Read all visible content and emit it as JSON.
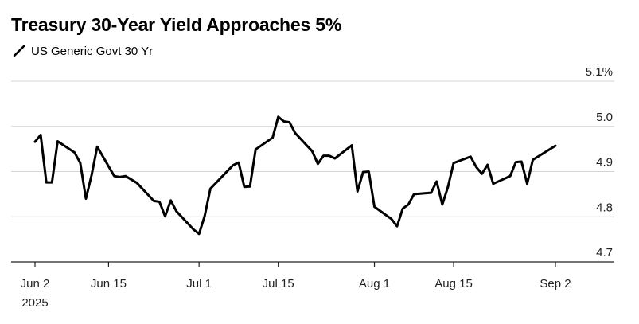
{
  "chart_data": {
    "type": "line",
    "title": "Treasury 30-Year Yield Approaches 5%",
    "legend_position": "top-left",
    "grid": true,
    "series": [
      {
        "name": "US Generic Govt 30 Yr",
        "color": "#000000",
        "points": [
          [
            "2025-06-02",
            4.966
          ],
          [
            "2025-06-03",
            4.981
          ],
          [
            "2025-06-04",
            4.876
          ],
          [
            "2025-06-05",
            4.876
          ],
          [
            "2025-06-06",
            4.967
          ],
          [
            "2025-06-09",
            4.942
          ],
          [
            "2025-06-10",
            4.919
          ],
          [
            "2025-06-11",
            4.84
          ],
          [
            "2025-06-12",
            4.892
          ],
          [
            "2025-06-13",
            4.955
          ],
          [
            "2025-06-16",
            4.89
          ],
          [
            "2025-06-17",
            4.888
          ],
          [
            "2025-06-18",
            4.89
          ],
          [
            "2025-06-20",
            4.875
          ],
          [
            "2025-06-23",
            4.835
          ],
          [
            "2025-06-24",
            4.833
          ],
          [
            "2025-06-25",
            4.801
          ],
          [
            "2025-06-26",
            4.836
          ],
          [
            "2025-06-27",
            4.812
          ],
          [
            "2025-06-30",
            4.772
          ],
          [
            "2025-07-01",
            4.762
          ],
          [
            "2025-07-02",
            4.802
          ],
          [
            "2025-07-03",
            4.862
          ],
          [
            "2025-07-07",
            4.914
          ],
          [
            "2025-07-08",
            4.92
          ],
          [
            "2025-07-09",
            4.866
          ],
          [
            "2025-07-10",
            4.867
          ],
          [
            "2025-07-11",
            4.949
          ],
          [
            "2025-07-14",
            4.975
          ],
          [
            "2025-07-15",
            5.021
          ],
          [
            "2025-07-16",
            5.011
          ],
          [
            "2025-07-17",
            5.009
          ],
          [
            "2025-07-18",
            4.985
          ],
          [
            "2025-07-21",
            4.945
          ],
          [
            "2025-07-22",
            4.917
          ],
          [
            "2025-07-23",
            4.935
          ],
          [
            "2025-07-24",
            4.935
          ],
          [
            "2025-07-25",
            4.929
          ],
          [
            "2025-07-28",
            4.958
          ],
          [
            "2025-07-29",
            4.856
          ],
          [
            "2025-07-30",
            4.899
          ],
          [
            "2025-07-31",
            4.9
          ],
          [
            "2025-08-01",
            4.822
          ],
          [
            "2025-08-04",
            4.795
          ],
          [
            "2025-08-05",
            4.779
          ],
          [
            "2025-08-06",
            4.818
          ],
          [
            "2025-08-07",
            4.827
          ],
          [
            "2025-08-08",
            4.85
          ],
          [
            "2025-08-11",
            4.853
          ],
          [
            "2025-08-12",
            4.878
          ],
          [
            "2025-08-13",
            4.827
          ],
          [
            "2025-08-14",
            4.866
          ],
          [
            "2025-08-15",
            4.919
          ],
          [
            "2025-08-18",
            4.933
          ],
          [
            "2025-08-19",
            4.91
          ],
          [
            "2025-08-20",
            4.895
          ],
          [
            "2025-08-21",
            4.915
          ],
          [
            "2025-08-22",
            4.873
          ],
          [
            "2025-08-25",
            4.89
          ],
          [
            "2025-08-26",
            4.921
          ],
          [
            "2025-08-27",
            4.922
          ],
          [
            "2025-08-28",
            4.873
          ],
          [
            "2025-08-29",
            4.926
          ],
          [
            "2025-09-02",
            4.957
          ]
        ]
      }
    ],
    "y_axis": {
      "position": "right",
      "ylim": [
        4.7,
        5.1
      ],
      "ticks": [
        {
          "value": 5.1,
          "label": "5.1%"
        },
        {
          "value": 5.0,
          "label": "5.0"
        },
        {
          "value": 4.9,
          "label": "4.9"
        },
        {
          "value": 4.8,
          "label": "4.8"
        },
        {
          "value": 4.7,
          "label": "4.7"
        }
      ]
    },
    "x_axis": {
      "xlim": [
        "2025-06-02",
        "2025-09-02"
      ],
      "ticks": [
        {
          "date": "2025-06-02",
          "label": "Jun 2",
          "sublabel": "2025"
        },
        {
          "date": "2025-06-15",
          "label": "Jun 15"
        },
        {
          "date": "2025-07-01",
          "label": "Jul 1"
        },
        {
          "date": "2025-07-15",
          "label": "Jul 15"
        },
        {
          "date": "2025-08-01",
          "label": "Aug 1"
        },
        {
          "date": "2025-08-15",
          "label": "Aug 15"
        },
        {
          "date": "2025-09-02",
          "label": "Sep 2"
        }
      ]
    }
  }
}
